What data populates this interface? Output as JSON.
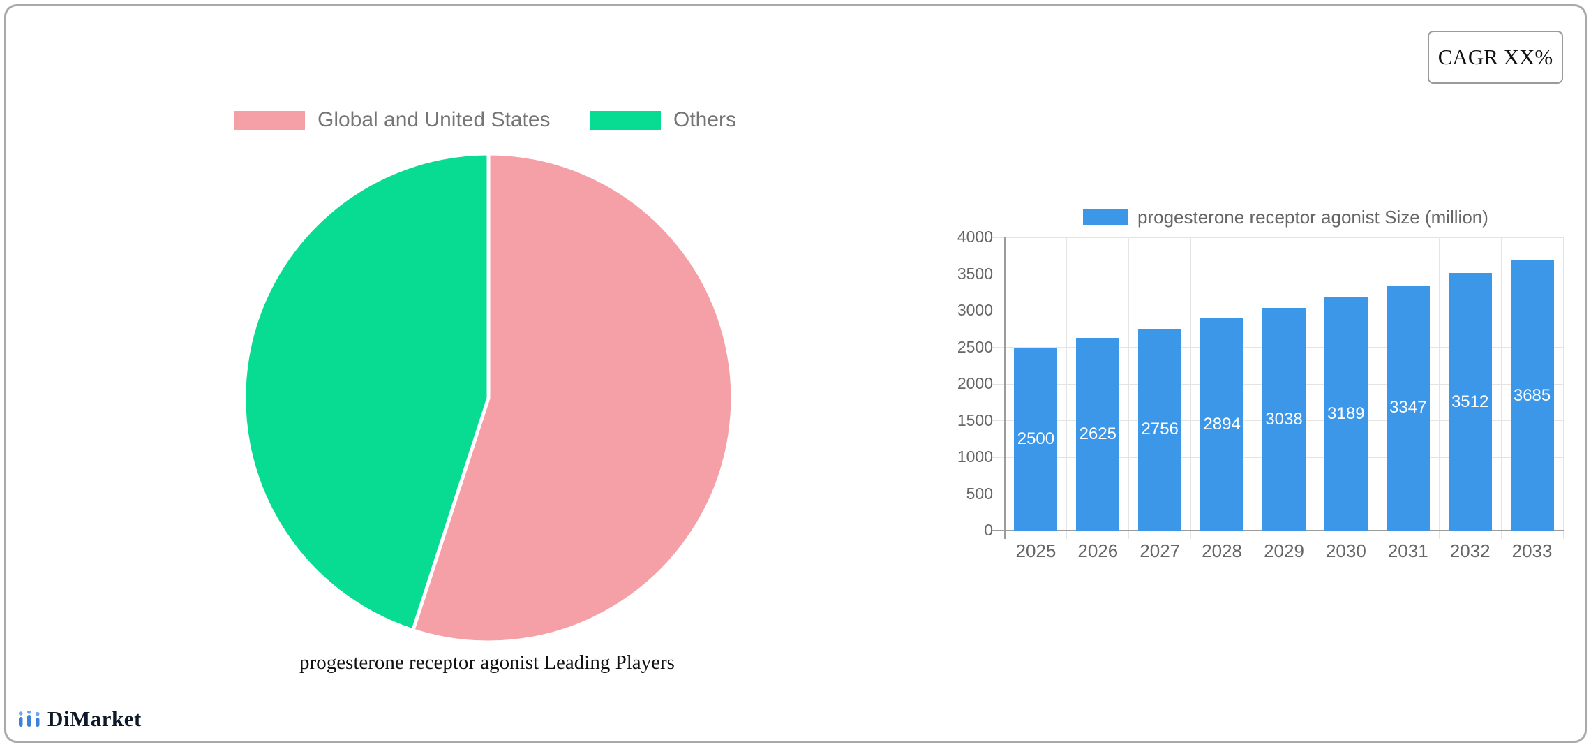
{
  "cagr_label": "CAGR XX%",
  "logo_text": "DiMarket",
  "chart_data": [
    {
      "type": "pie",
      "title": "progesterone receptor agonist Leading Players",
      "legend_position": "top",
      "slices": [
        {
          "label": "Global and United States",
          "value": 55,
          "color": "#f5a0a6"
        },
        {
          "label": "Others",
          "value": 45,
          "color": "#07dc92"
        }
      ]
    },
    {
      "type": "bar",
      "legend": "progesterone receptor agonist Size (million)",
      "bar_color": "#3d97e9",
      "categories": [
        "2025",
        "2026",
        "2027",
        "2028",
        "2029",
        "2030",
        "2031",
        "2032",
        "2033"
      ],
      "values": [
        2500,
        2625,
        2756,
        2894,
        3038,
        3189,
        3347,
        3512,
        3685
      ],
      "ylim": [
        0,
        4000
      ],
      "y_ticks": [
        0,
        500,
        1000,
        1500,
        2000,
        2500,
        3000,
        3500,
        4000
      ],
      "grid": true,
      "value_labels_inside_bars": true
    }
  ]
}
